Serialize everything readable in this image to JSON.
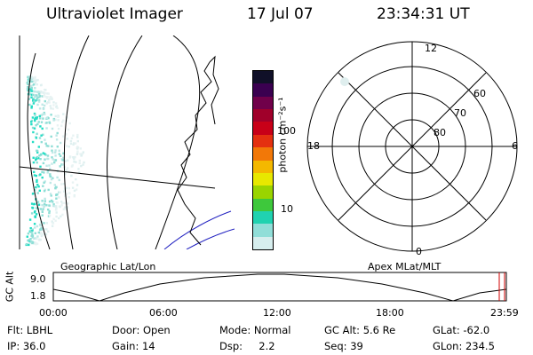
{
  "header": {
    "title": "Ultraviolet Imager",
    "date": "17 Jul 07",
    "time": "23:34:31 UT"
  },
  "colorbar": {
    "unit_label": "photon cm⁻²s⁻¹",
    "ticks": [
      "100",
      "10"
    ],
    "colors": [
      "#101028",
      "#3a0050",
      "#70004a",
      "#a0002a",
      "#c80018",
      "#e43010",
      "#f27808",
      "#f4b800",
      "#e8e800",
      "#9ad400",
      "#3ec83c",
      "#20d2b0",
      "#90ded8",
      "#d6eeee"
    ]
  },
  "map_panel": {
    "label": "Geographic Lat/Lon",
    "aurora_color": "#24ddc4"
  },
  "polar_panel": {
    "label": "Apex MLat/MLT",
    "mlt_labels": {
      "top": "12",
      "right": "6",
      "bottom": "0",
      "left": "18"
    },
    "mlat_labels": [
      "80",
      "70",
      "60"
    ]
  },
  "altitude_plot": {
    "axis_title": "GC Alt",
    "y_ticks": [
      "9.0",
      "1.8"
    ],
    "x_ticks": [
      "00:00",
      "06:00",
      "12:00",
      "18:00",
      "23:59"
    ],
    "marker_color": "#d00000"
  },
  "info": {
    "flt": "Flt: LBHL",
    "ip": "IP: 36.0",
    "door": "Door: Open",
    "gain": "Gain: 14",
    "mode": "Mode: Normal",
    "dsp": "Dsp:     2.2",
    "gcalt": "GC Alt: 5.6 Re",
    "seq": "Seq: 39",
    "glat": "GLat: -62.0",
    "glon": "GLon: 234.5"
  }
}
